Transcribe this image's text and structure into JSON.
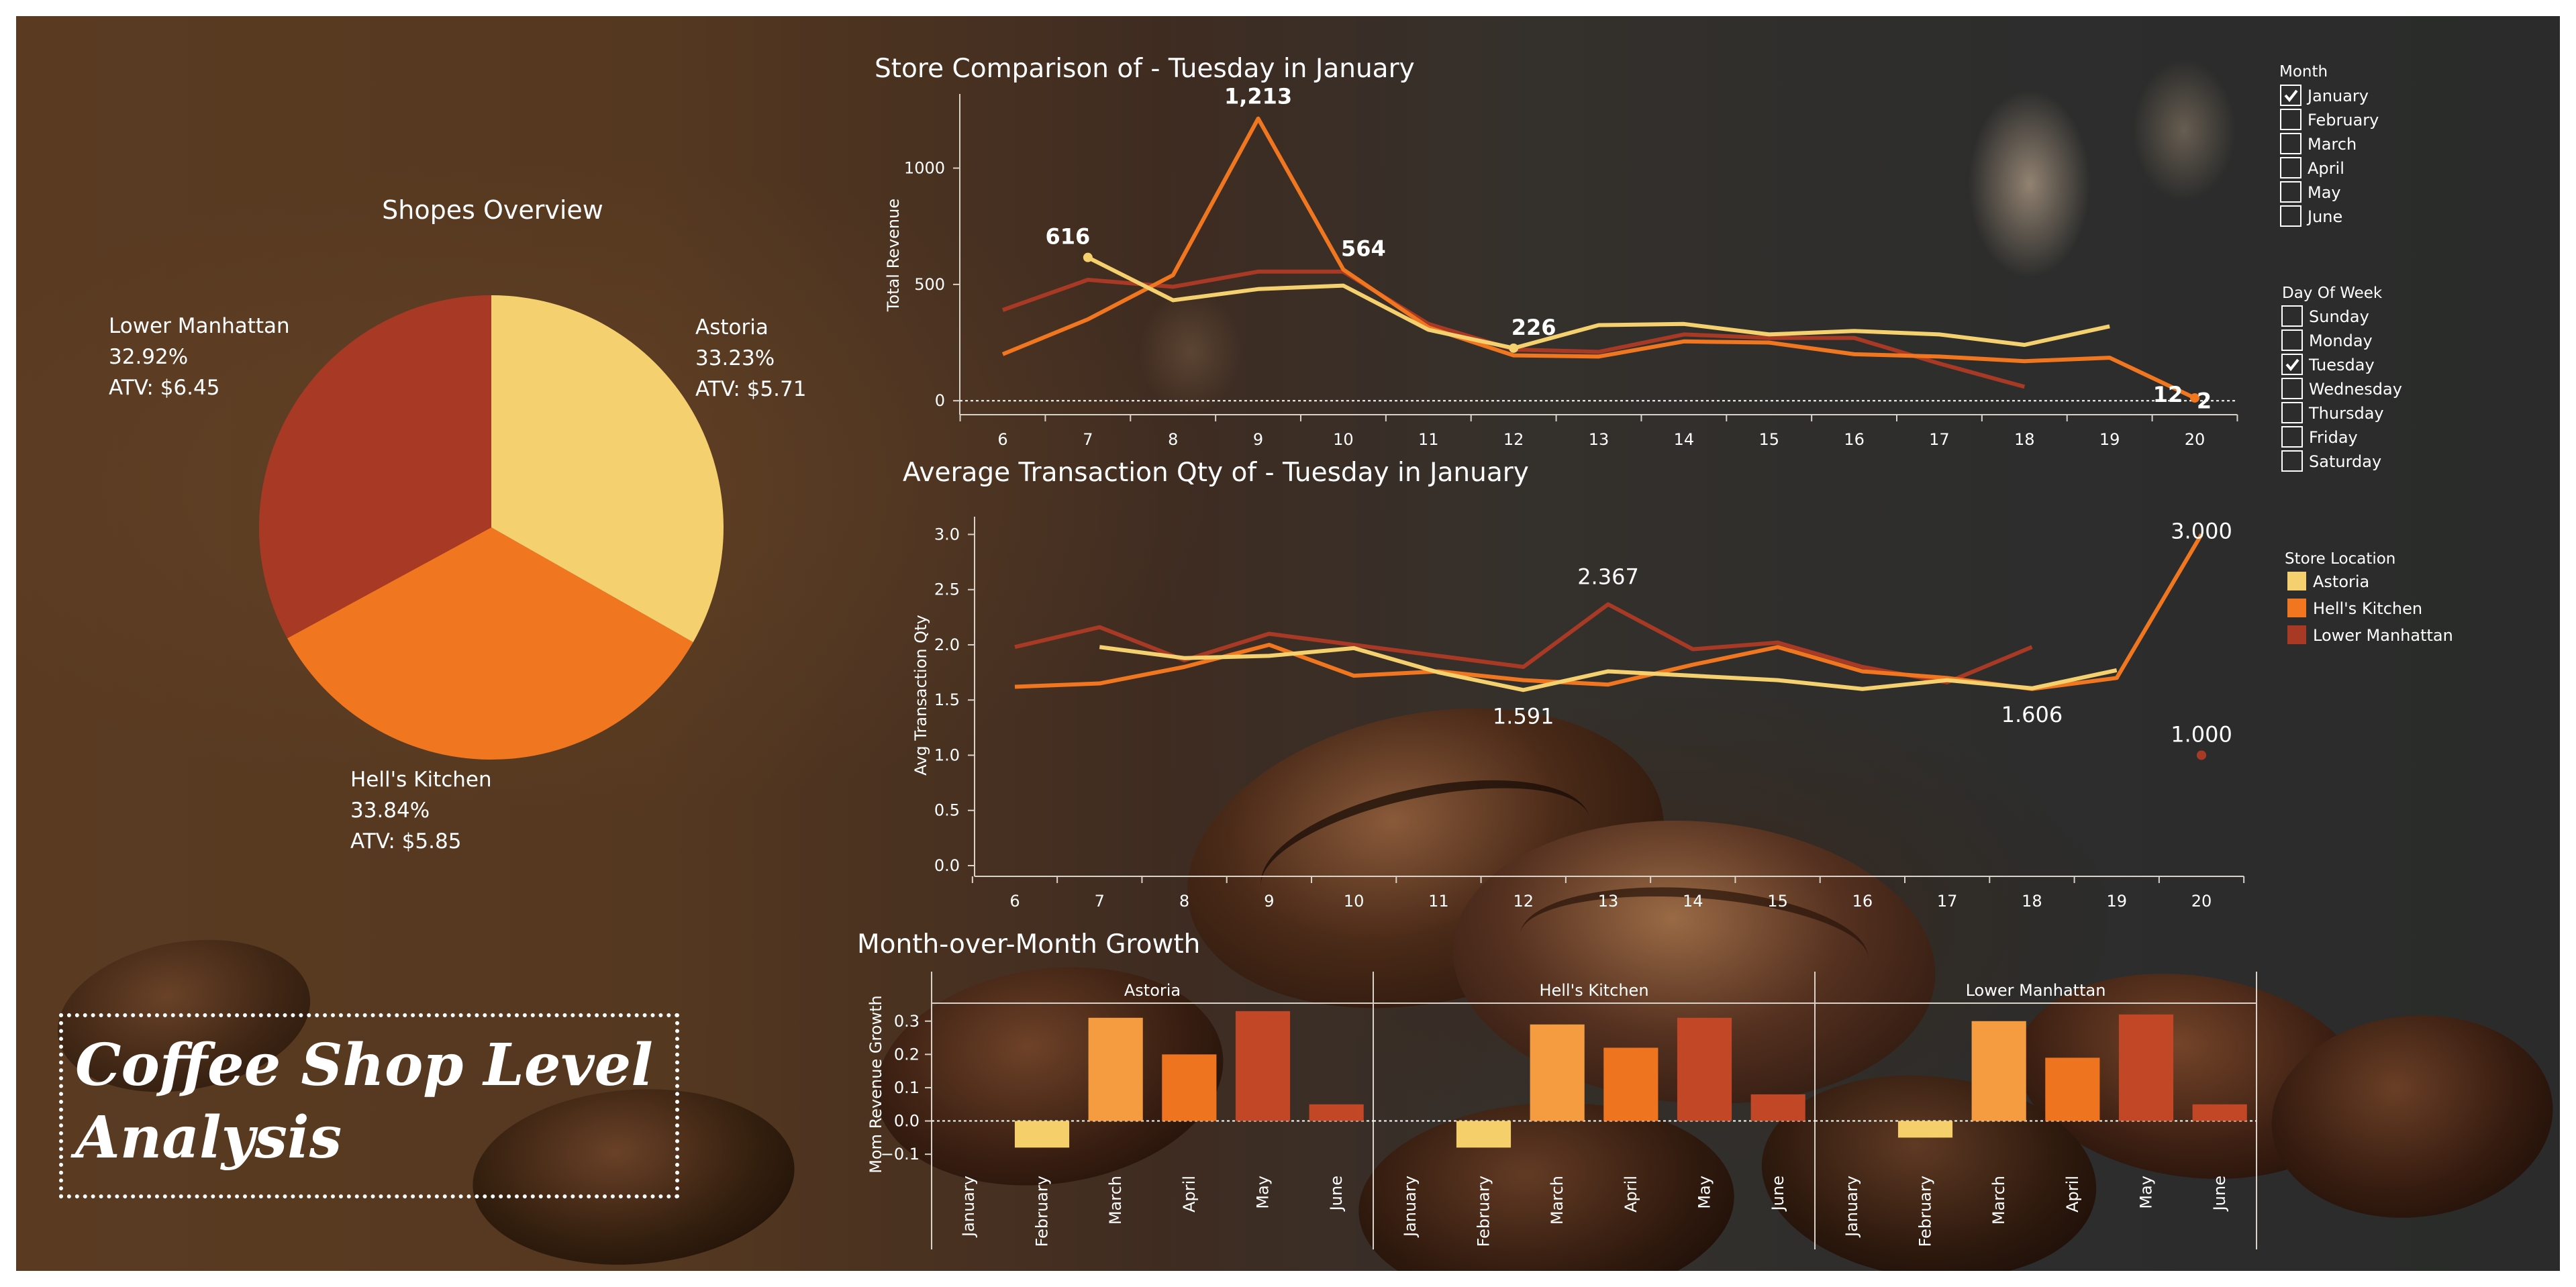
{
  "dashboard_title": "Coffee Shop Level\nAnalysis",
  "colors": {
    "astoria": "#f4d06f",
    "hells_kitchen": "#f0761f",
    "lower_manhattan": "#a83a25",
    "bar_astoria": "#f4cf6a",
    "bar_hells_kitchen": "#f59b40",
    "bar_hk_april": "#ee7420",
    "bar_lower_manhattan": "#c14726",
    "text": "#ffffff"
  },
  "filters": {
    "month": {
      "title": "Month",
      "options": [
        {
          "label": "January",
          "checked": true
        },
        {
          "label": "February",
          "checked": false
        },
        {
          "label": "March",
          "checked": false
        },
        {
          "label": "April",
          "checked": false
        },
        {
          "label": "May",
          "checked": false
        },
        {
          "label": "June",
          "checked": false
        }
      ]
    },
    "day_of_week": {
      "title": "Day Of Week",
      "options": [
        {
          "label": "Sunday",
          "checked": false
        },
        {
          "label": "Monday",
          "checked": false
        },
        {
          "label": "Tuesday",
          "checked": true
        },
        {
          "label": "Wednesday",
          "checked": false
        },
        {
          "label": "Thursday",
          "checked": false
        },
        {
          "label": "Friday",
          "checked": false
        },
        {
          "label": "Saturday",
          "checked": false
        }
      ]
    },
    "store_location": {
      "title": "Store Location",
      "items": [
        {
          "label": "Astoria",
          "color": "#f4d06f"
        },
        {
          "label": "Hell's Kitchen",
          "color": "#f0761f"
        },
        {
          "label": "Lower Manhattan",
          "color": "#a83a25"
        }
      ]
    }
  },
  "chart_data": [
    {
      "id": "pie",
      "type": "pie",
      "title": "Shopes Overview",
      "slices": [
        {
          "name": "Astoria",
          "pct_label": "33.23%",
          "atv_label": "ATV: $5.71",
          "value": 33.23,
          "color": "#f4d06f"
        },
        {
          "name": "Hell's Kitchen",
          "pct_label": "33.84%",
          "atv_label": "ATV: $5.85",
          "value": 33.84,
          "color": "#f0761f"
        },
        {
          "name": "Lower Manhattan",
          "pct_label": "32.92%",
          "atv_label": "ATV: $6.45",
          "value": 32.92,
          "color": "#a83a25"
        }
      ]
    },
    {
      "id": "revenue",
      "type": "line",
      "title": "Store Comparison of  - Tuesday in January",
      "ylabel": "Total Revenue",
      "xlabel": "",
      "x": [
        6,
        7,
        8,
        9,
        10,
        11,
        12,
        13,
        14,
        15,
        16,
        17,
        18,
        19,
        20
      ],
      "ylim": [
        -60,
        1290
      ],
      "yticks": [
        0,
        500,
        1000
      ],
      "series": [
        {
          "name": "Astoria",
          "color": "#f4d06f",
          "points": [
            [
              7,
              616
            ],
            [
              8,
              432
            ],
            [
              9,
              480
            ],
            [
              10,
              495
            ],
            [
              11,
              305
            ],
            [
              12,
              226
            ],
            [
              13,
              325
            ],
            [
              14,
              330
            ],
            [
              15,
              285
            ],
            [
              16,
              300
            ],
            [
              17,
              285
            ],
            [
              18,
              240
            ],
            [
              19,
              320
            ]
          ]
        },
        {
          "name": "Hell's Kitchen",
          "color": "#f0761f",
          "points": [
            [
              6,
              200
            ],
            [
              7,
              350
            ],
            [
              8,
              540
            ],
            [
              9,
              1213
            ],
            [
              10,
              564
            ],
            [
              11,
              315
            ],
            [
              12,
              195
            ],
            [
              13,
              190
            ],
            [
              14,
              255
            ],
            [
              15,
              250
            ],
            [
              16,
              200
            ],
            [
              17,
              190
            ],
            [
              18,
              170
            ],
            [
              19,
              185
            ],
            [
              20,
              12
            ]
          ]
        },
        {
          "name": "Lower Manhattan",
          "color": "#a83a25",
          "points": [
            [
              6,
              390
            ],
            [
              7,
              520
            ],
            [
              8,
              490
            ],
            [
              9,
              555
            ],
            [
              10,
              555
            ],
            [
              11,
              330
            ],
            [
              12,
              220
            ],
            [
              13,
              210
            ],
            [
              14,
              285
            ],
            [
              15,
              270
            ],
            [
              16,
              270
            ],
            [
              17,
              160
            ],
            [
              18,
              60
            ]
          ]
        }
      ],
      "annotations": [
        {
          "x": 7,
          "y": 616,
          "label": "616"
        },
        {
          "x": 9,
          "y": 1213,
          "label": "1,213"
        },
        {
          "x": 10,
          "y": 564,
          "label": "564"
        },
        {
          "x": 12,
          "y": 226,
          "label": "226"
        },
        {
          "x": 20,
          "y": 12,
          "label": "12"
        },
        {
          "x": 20,
          "y": 2,
          "label": "2"
        }
      ],
      "reference_line": 0
    },
    {
      "id": "qty",
      "type": "line",
      "title": "Average Transaction Qty of - Tuesday in January",
      "ylabel": "Avg Transaction Qty",
      "xlabel": "",
      "x": [
        6,
        7,
        8,
        9,
        10,
        11,
        12,
        13,
        14,
        15,
        16,
        17,
        18,
        19,
        20
      ],
      "ylim": [
        0,
        3.1
      ],
      "yticks": [
        0.0,
        0.5,
        1.0,
        1.5,
        2.0,
        2.5,
        3.0
      ],
      "series": [
        {
          "name": "Astoria",
          "color": "#f4d06f",
          "points": [
            [
              7,
              1.98
            ],
            [
              8,
              1.88
            ],
            [
              9,
              1.9
            ],
            [
              10,
              1.97
            ],
            [
              11,
              1.75
            ],
            [
              12,
              1.591
            ],
            [
              13,
              1.76
            ],
            [
              14,
              1.72
            ],
            [
              15,
              1.68
            ],
            [
              16,
              1.6
            ],
            [
              17,
              1.68
            ],
            [
              18,
              1.606
            ],
            [
              19,
              1.77
            ]
          ]
        },
        {
          "name": "Hell's Kitchen",
          "color": "#f0761f",
          "points": [
            [
              6,
              1.62
            ],
            [
              7,
              1.65
            ],
            [
              8,
              1.8
            ],
            [
              9,
              2.0
            ],
            [
              10,
              1.72
            ],
            [
              11,
              1.76
            ],
            [
              12,
              1.68
            ],
            [
              13,
              1.64
            ],
            [
              14,
              1.82
            ],
            [
              15,
              1.98
            ],
            [
              16,
              1.76
            ],
            [
              17,
              1.7
            ],
            [
              18,
              1.6
            ],
            [
              19,
              1.7
            ],
            [
              20,
              3.0
            ]
          ]
        },
        {
          "name": "Lower Manhattan",
          "color": "#a83a25",
          "points": [
            [
              6,
              1.98
            ],
            [
              7,
              2.16
            ],
            [
              8,
              1.86
            ],
            [
              9,
              2.1
            ],
            [
              10,
              2.0
            ],
            [
              11,
              1.9
            ],
            [
              12,
              1.8
            ],
            [
              13,
              2.367
            ],
            [
              14,
              1.96
            ],
            [
              15,
              2.02
            ],
            [
              16,
              1.8
            ],
            [
              17,
              1.66
            ],
            [
              18,
              1.98
            ]
          ],
          "extra_points": [
            [
              20,
              1.0
            ]
          ]
        }
      ],
      "annotations": [
        {
          "x": 13,
          "y": 2.367,
          "label": "2.367"
        },
        {
          "x": 12,
          "y": 1.591,
          "label": "1.591"
        },
        {
          "x": 18,
          "y": 1.606,
          "label": "1.606"
        },
        {
          "x": 20,
          "y": 3.0,
          "label": "3.000"
        },
        {
          "x": 20,
          "y": 1.0,
          "label": "1.000"
        }
      ]
    },
    {
      "id": "mom",
      "type": "bar",
      "title": "Month-over-Month Growth",
      "ylabel": "Mom Revenue Growth",
      "xlabel": "",
      "categories": [
        "January",
        "February",
        "March",
        "April",
        "May",
        "June"
      ],
      "ylim": [
        -0.14,
        0.36
      ],
      "yticks": [
        -0.1,
        0.0,
        0.1,
        0.2,
        0.3
      ],
      "ytick_labels": [
        "−0.1",
        "0.0",
        "0.1",
        "0.2",
        "0.3"
      ],
      "panels": [
        {
          "name": "Astoria",
          "values": [
            null,
            -0.08,
            0.31,
            0.2,
            0.33,
            0.05
          ],
          "colors": [
            "#f4cf6a",
            "#f4cf6a",
            "#f59b40",
            "#ee7420",
            "#c14726",
            "#c14726"
          ]
        },
        {
          "name": "Hell's Kitchen",
          "values": [
            null,
            -0.08,
            0.29,
            0.22,
            0.31,
            0.08
          ],
          "colors": [
            "#f4cf6a",
            "#f4cf6a",
            "#f59b40",
            "#ee7420",
            "#c14726",
            "#c14726"
          ]
        },
        {
          "name": "Lower Manhattan",
          "values": [
            null,
            -0.05,
            0.3,
            0.19,
            0.32,
            0.05
          ],
          "colors": [
            "#f4cf6a",
            "#f4cf6a",
            "#f59b40",
            "#ee7420",
            "#c14726",
            "#c14726"
          ]
        }
      ]
    }
  ]
}
